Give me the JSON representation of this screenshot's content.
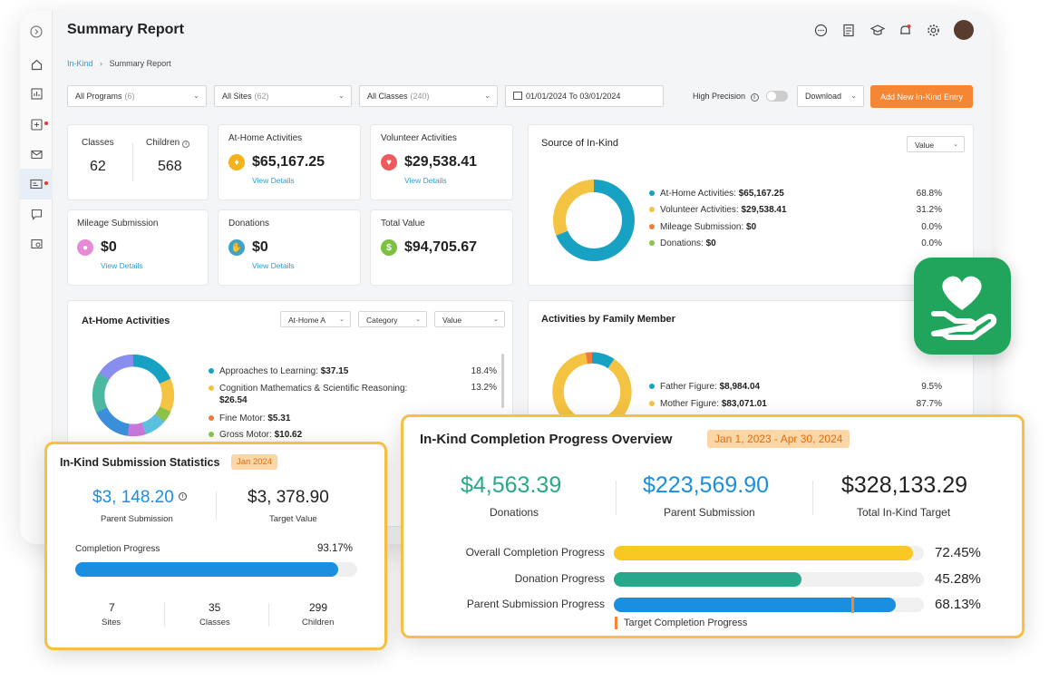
{
  "header": {
    "title": "Summary Report"
  },
  "breadcrumb": {
    "link": "In-Kind",
    "sep": "›",
    "current": "Summary Report"
  },
  "filters": {
    "programs": {
      "label": "All Programs",
      "count": "(6)"
    },
    "sites": {
      "label": "All Sites",
      "count": "(62)"
    },
    "classes": {
      "label": "All Classes",
      "count": "(240)"
    },
    "dates": "01/01/2024 To 03/01/2024",
    "high_precision": "High Precision",
    "download": "Download",
    "add_entry": "Add New In-Kind Entry"
  },
  "stats": {
    "classes_label": "Classes",
    "classes_value": "62",
    "children_label": "Children",
    "children_value": "568",
    "at_home_label": "At-Home Activities",
    "at_home_value": "$65,167.25",
    "volunteer_label": "Volunteer Activities",
    "volunteer_value": "$29,538.41",
    "mileage_label": "Mileage Submission",
    "mileage_value": "$0",
    "donations_label": "Donations",
    "donations_value": "$0",
    "total_label": "Total Value",
    "total_value": "$94,705.67",
    "view_details": "View Details"
  },
  "source": {
    "title": "Source of In-Kind",
    "select": "Value",
    "items": [
      {
        "label": "At-Home Activities:",
        "value": "$65,167.25",
        "pct": "68.8%",
        "fraction": 0.688,
        "color": "#17a2c4"
      },
      {
        "label": "Volunteer Activities:",
        "value": "$29,538.41",
        "pct": "31.2%",
        "fraction": 0.312,
        "color": "#f5c342"
      },
      {
        "label": "Mileage Submission:",
        "value": "$0",
        "pct": "0.0%",
        "fraction": 0,
        "color": "#f07b3f"
      },
      {
        "label": "Donations:",
        "value": "$0",
        "pct": "0.0%",
        "fraction": 0,
        "color": "#8bc34a"
      }
    ]
  },
  "athome": {
    "title": "At-Home Activities",
    "sel1": "At-Home A",
    "sel2": "Category",
    "sel3": "Value",
    "items": [
      {
        "label": "Approaches to Learning:",
        "value": "$37.15",
        "pct": "18.4%",
        "color": "#17a2c4"
      },
      {
        "label": "Cognition Mathematics & Scientific Reasoning:",
        "value": "$26.54",
        "pct": "13.2%",
        "color": "#f5c342"
      },
      {
        "label": "Fine Motor:",
        "value": "$5.31",
        "pct": "2.6%",
        "color": "#f07b3f"
      },
      {
        "label": "Gross Motor:",
        "value": "$10.62",
        "pct": "",
        "color": "#8bc34a"
      }
    ]
  },
  "family": {
    "title": "Activities by Family Member",
    "items": [
      {
        "label": "Father Figure:",
        "value": "$8,984.04",
        "pct": "9.5%",
        "fraction": 0.095,
        "color": "#17a2c4"
      },
      {
        "label": "Mother Figure:",
        "value": "$83,071.01",
        "pct": "87.7%",
        "fraction": 0.877,
        "color": "#f5c342"
      },
      {
        "label": "Other:",
        "value": "$2,650.61",
        "pct": "2.8%",
        "fraction": 0.028,
        "color": "#f07b3f"
      }
    ]
  },
  "submission": {
    "title": "In-Kind Submission Statistics",
    "badge": "Jan 2024",
    "parent_value": "$3, 148.20",
    "parent_label": "Parent Submission",
    "target_value": "$3, 378.90",
    "target_label": "Target Value",
    "progress_label": "Completion Progress",
    "progress_pct": "93.17%",
    "progress_fraction": 0.9317,
    "sites_value": "7",
    "sites_label": "Sites",
    "classes_value": "35",
    "classes_label": "Classes",
    "children_value": "299",
    "children_label": "Children"
  },
  "overview": {
    "title": "In-Kind Completion Progress Overview",
    "badge": "Jan 1, 2023 - Apr 30, 2024",
    "donations_value": "$4,563.39",
    "donations_label": "Donations",
    "parent_value": "$223,569.90",
    "parent_label": "Parent Submission",
    "target_value": "$328,133.29",
    "target_label": "Total In-Kind Target",
    "bars": [
      {
        "label": "Overall Completion Progress",
        "pct": "72.45%",
        "fraction": 0.7245,
        "color": "#f9c823"
      },
      {
        "label": "Donation Progress",
        "pct": "45.28%",
        "fraction": 0.4528,
        "color": "#26a98b"
      },
      {
        "label": "Parent Submission Progress",
        "pct": "68.13%",
        "fraction": 0.6813,
        "color": "#1a8fe0"
      }
    ],
    "target_legend": "Target Completion Progress"
  },
  "colors": {
    "accent": "#f58634",
    "overlay_border": "#f7c042",
    "link": "#2a9fd6",
    "teal": "#26a98b",
    "blue": "#1a8fe0"
  }
}
